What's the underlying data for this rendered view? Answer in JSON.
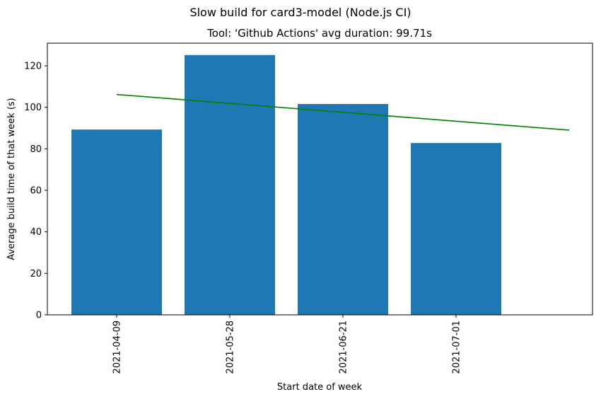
{
  "chart_data": {
    "type": "bar",
    "suptitle": "Slow build for card3-model (Node.js CI)",
    "title": "Tool: 'Github Actions' avg duration: 99.71s",
    "xlabel": "Start date of week",
    "ylabel": "Average build time of that week (s)",
    "categories": [
      "2021-04-09",
      "2021-05-28",
      "2021-06-21",
      "2021-07-01"
    ],
    "series": [
      {
        "values": [
          89.3,
          125.2,
          101.6,
          82.8
        ],
        "color": "#1f77b4"
      }
    ],
    "trend_line": {
      "start": 106.2,
      "end": 89.0,
      "x_start_index": 0,
      "x_end_index": 4,
      "color": "#008000"
    },
    "y_ticks": [
      0,
      20,
      40,
      60,
      80,
      100,
      120
    ],
    "ylim": [
      0,
      131.5
    ],
    "grid": false,
    "legend": "none"
  }
}
